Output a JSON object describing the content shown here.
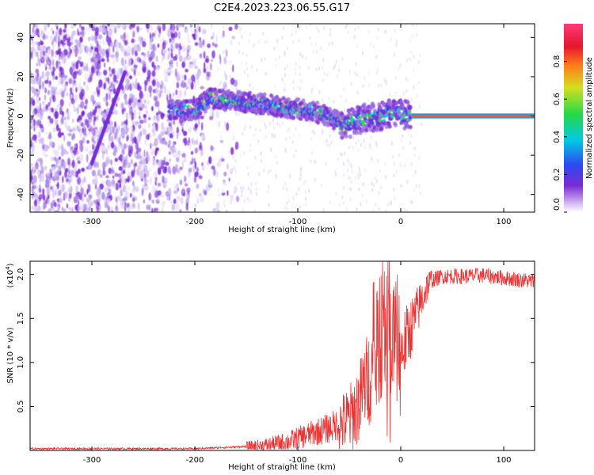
{
  "title": "C2E4.2023.223.06.55.G17",
  "colors": {
    "snr_line": "#ee3333",
    "colorbar": [
      "#ffffff",
      "#7b2cd4",
      "#2f48f0",
      "#00c8e6",
      "#25d948",
      "#d2e020",
      "#ff7a1a",
      "#e3172c",
      "#ff3a7a"
    ]
  },
  "chart_data": [
    {
      "type": "heatmap",
      "xlabel": "Height of straight line (km)",
      "ylabel": "Frequency (Hz)",
      "xlim": [
        -360,
        130
      ],
      "ylim": [
        -49,
        47
      ],
      "xticks": [
        -300,
        -200,
        -100,
        0,
        100
      ],
      "yticks": [
        -40,
        -20,
        0,
        20,
        40
      ],
      "colorbar": {
        "label": "Normalized spectral amplitude",
        "range": [
          0.0,
          1.0
        ],
        "ticks": [
          0.0,
          0.2,
          0.4,
          0.6,
          0.8
        ]
      },
      "features": {
        "noise_region_x": [
          -360,
          -175
        ],
        "diagonal_streak": {
          "from": [
            -300,
            -24
          ],
          "to": [
            -268,
            22
          ]
        },
        "main_track": {
          "x": [
            -225,
            -200,
            -185,
            -170,
            -150,
            -130,
            -110,
            -90,
            -70,
            -55,
            -45,
            -35,
            -20,
            -10,
            0,
            10,
            130
          ],
          "y": [
            3,
            3,
            9,
            8,
            7,
            6,
            4,
            3,
            0,
            -5,
            -3,
            -1,
            0,
            1,
            1,
            0,
            0
          ]
        },
        "saturated_carrier_x": [
          10,
          130
        ]
      }
    },
    {
      "type": "line",
      "xlabel": "Height of straight line (km)",
      "ylabel": "SNR (10 * v/v)",
      "scale_label": "(x10",
      "scale_exp": "4",
      "scale_close": ")",
      "xlim": [
        -360,
        130
      ],
      "ylim": [
        0.0,
        2.15
      ],
      "xticks": [
        -300,
        -200,
        -100,
        0,
        100
      ],
      "yticks": [
        0.5,
        1.0,
        1.5,
        2.0
      ],
      "series": [
        {
          "x": [
            -360,
            -250,
            -200,
            -160,
            -130,
            -110,
            -100,
            -85,
            -70,
            -60,
            -50,
            -45,
            -40,
            -35,
            -30,
            -25,
            -20,
            -15,
            -10,
            -5,
            0,
            5,
            10,
            15,
            20,
            25,
            30,
            40,
            60,
            80,
            100,
            130
          ],
          "values": [
            0.02,
            0.02,
            0.02,
            0.04,
            0.06,
            0.1,
            0.14,
            0.2,
            0.25,
            0.3,
            0.35,
            0.45,
            0.55,
            0.75,
            0.85,
            0.95,
            1.2,
            1.3,
            1.35,
            1.3,
            1.1,
            1.25,
            1.4,
            1.55,
            1.7,
            1.85,
            1.93,
            1.98,
            1.98,
            1.99,
            1.96,
            1.92
          ]
        }
      ]
    }
  ]
}
